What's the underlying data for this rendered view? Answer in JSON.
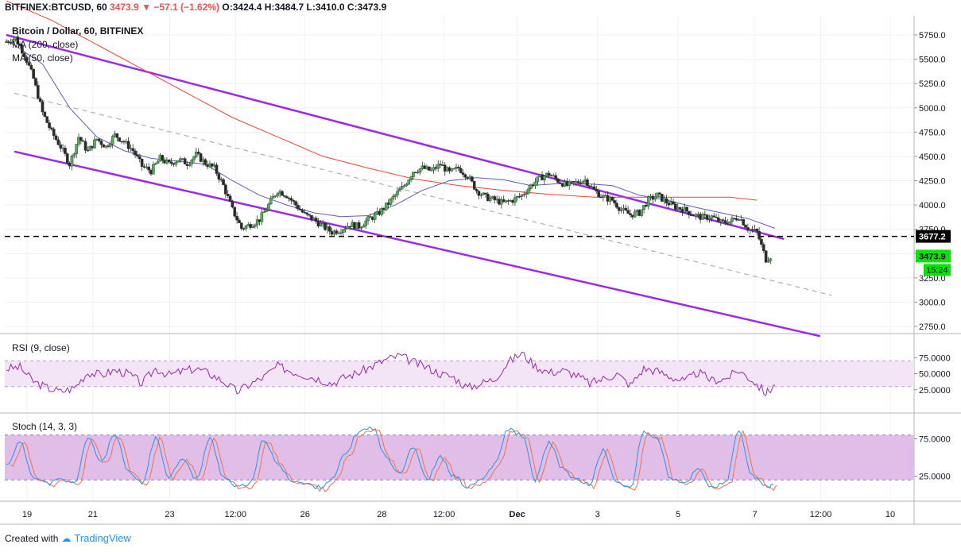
{
  "header": {
    "symbol": "BITFINEX:BTCUSD, 60",
    "last": "3473.9",
    "change": "−57.1 (−1.62%)",
    "ohlc": {
      "o": "O:3424.4",
      "h": "H:3484.7",
      "l": "L:3410.0",
      "c": "C:3473.9"
    }
  },
  "legend": {
    "main": "Bitcoin / Dollar, 60, BITFINEX",
    "ma200": "MA (200, close)",
    "ma50": "MA (50, close)",
    "rsi": "RSI (9, close)",
    "stoch": "Stoch (14, 3, 3)"
  },
  "footer": {
    "created_with": "Created with",
    "brand": "TradingView"
  },
  "price_labels": {
    "resistance": "3677.2",
    "last": "3473.9",
    "countdown": "15:24"
  },
  "colors": {
    "up": "#26a69a",
    "down": "#ef5350",
    "candle_up": "#4caf50",
    "candle_down": "#2a2a2a",
    "channel": "#9c27f0",
    "ma200": "#f44336",
    "ma50": "#5b5fb5",
    "rsi_line": "#9c27b0",
    "rsi_band": "#f3e5f5",
    "stoch_band": "#e1bee7",
    "stoch_k": "#2196f3",
    "stoch_d": "#ff7043",
    "last_price": "#00e600"
  },
  "chart_data": [
    {
      "type": "candlestick",
      "title": "Bitcoin / Dollar, 60, BITFINEX",
      "ylim": [
        2600,
        5900
      ],
      "y_ticks": [
        "5750.0",
        "5500.0",
        "5250.0",
        "5000.0",
        "4750.0",
        "4500.0",
        "4250.0",
        "4000.0",
        "3750.0",
        "3500.0",
        "3250.0",
        "3000.0",
        "2750.0"
      ],
      "x_ticks": [
        "19",
        "21",
        "23",
        "12:00",
        "26",
        "28",
        "12:00",
        "Dec",
        "3",
        "5",
        "7",
        "12:00",
        "10"
      ],
      "close_path": [
        [
          0,
          5680
        ],
        [
          2,
          5720
        ],
        [
          4,
          5550
        ],
        [
          6,
          5300
        ],
        [
          8,
          4950
        ],
        [
          10,
          4750
        ],
        [
          12,
          4600
        ],
        [
          14,
          4420
        ],
        [
          16,
          4700
        ],
        [
          18,
          4550
        ],
        [
          20,
          4680
        ],
        [
          22,
          4600
        ],
        [
          24,
          4720
        ],
        [
          26,
          4650
        ],
        [
          28,
          4560
        ],
        [
          30,
          4400
        ],
        [
          32,
          4350
        ],
        [
          34,
          4480
        ],
        [
          36,
          4420
        ],
        [
          38,
          4470
        ],
        [
          40,
          4430
        ],
        [
          42,
          4520
        ],
        [
          44,
          4430
        ],
        [
          46,
          4380
        ],
        [
          48,
          4200
        ],
        [
          50,
          3950
        ],
        [
          52,
          3760
        ],
        [
          54,
          3800
        ],
        [
          56,
          3850
        ],
        [
          58,
          4000
        ],
        [
          60,
          4150
        ],
        [
          62,
          4100
        ],
        [
          64,
          4000
        ],
        [
          66,
          3900
        ],
        [
          68,
          3850
        ],
        [
          70,
          3780
        ],
        [
          72,
          3720
        ],
        [
          74,
          3750
        ],
        [
          76,
          3800
        ],
        [
          78,
          3780
        ],
        [
          80,
          3850
        ],
        [
          82,
          3900
        ],
        [
          84,
          3990
        ],
        [
          86,
          4100
        ],
        [
          88,
          4200
        ],
        [
          90,
          4350
        ],
        [
          92,
          4380
        ],
        [
          94,
          4350
        ],
        [
          96,
          4420
        ],
        [
          98,
          4330
        ],
        [
          100,
          4380
        ],
        [
          102,
          4300
        ],
        [
          104,
          4150
        ],
        [
          106,
          4080
        ],
        [
          108,
          4050
        ],
        [
          110,
          4020
        ],
        [
          112,
          4050
        ],
        [
          114,
          4100
        ],
        [
          116,
          4200
        ],
        [
          118,
          4280
        ],
        [
          120,
          4320
        ],
        [
          122,
          4250
        ],
        [
          124,
          4200
        ],
        [
          126,
          4230
        ],
        [
          128,
          4260
        ],
        [
          130,
          4150
        ],
        [
          132,
          4080
        ],
        [
          134,
          4050
        ],
        [
          136,
          3950
        ],
        [
          138,
          3900
        ],
        [
          140,
          3920
        ],
        [
          142,
          4050
        ],
        [
          144,
          4100
        ],
        [
          146,
          4030
        ],
        [
          148,
          3980
        ],
        [
          150,
          3950
        ],
        [
          152,
          3900
        ],
        [
          154,
          3870
        ],
        [
          156,
          3880
        ],
        [
          158,
          3820
        ],
        [
          160,
          3830
        ],
        [
          162,
          3880
        ],
        [
          164,
          3760
        ],
        [
          166,
          3720
        ],
        [
          168,
          3440
        ],
        [
          169,
          3473.9
        ]
      ],
      "ma200": [
        [
          0,
          6100
        ],
        [
          10,
          5900
        ],
        [
          20,
          5650
        ],
        [
          30,
          5400
        ],
        [
          40,
          5150
        ],
        [
          50,
          4900
        ],
        [
          60,
          4700
        ],
        [
          70,
          4500
        ],
        [
          80,
          4380
        ],
        [
          90,
          4270
        ],
        [
          100,
          4200
        ],
        [
          110,
          4150
        ],
        [
          120,
          4110
        ],
        [
          130,
          4080
        ],
        [
          140,
          4080
        ],
        [
          150,
          4080
        ],
        [
          160,
          4080
        ],
        [
          166,
          4050
        ]
      ],
      "ma50": [
        [
          0,
          5700
        ],
        [
          8,
          5450
        ],
        [
          14,
          5000
        ],
        [
          20,
          4700
        ],
        [
          26,
          4560
        ],
        [
          32,
          4480
        ],
        [
          38,
          4450
        ],
        [
          44,
          4420
        ],
        [
          50,
          4250
        ],
        [
          56,
          4100
        ],
        [
          62,
          4000
        ],
        [
          68,
          3920
        ],
        [
          74,
          3880
        ],
        [
          80,
          3890
        ],
        [
          86,
          4000
        ],
        [
          92,
          4150
        ],
        [
          98,
          4250
        ],
        [
          104,
          4280
        ],
        [
          110,
          4260
        ],
        [
          116,
          4200
        ],
        [
          122,
          4220
        ],
        [
          128,
          4220
        ],
        [
          134,
          4200
        ],
        [
          140,
          4100
        ],
        [
          146,
          4050
        ],
        [
          152,
          3980
        ],
        [
          158,
          3920
        ],
        [
          164,
          3860
        ],
        [
          170,
          3760
        ]
      ],
      "channel_upper": [
        [
          0,
          5750
        ],
        [
          172,
          3650
        ]
      ],
      "channel_lower": [
        [
          0,
          4550
        ],
        [
          158,
          2650
        ]
      ],
      "midline": [
        [
          0,
          5150
        ],
        [
          172,
          3070
        ]
      ],
      "resistance": 3677.2,
      "last": 3473.9
    },
    {
      "type": "line",
      "title": "RSI (9, close)",
      "ylim": [
        0,
        100
      ],
      "y_ticks": [
        "75.0000",
        "50.0000",
        "25.0000"
      ],
      "band": [
        30,
        70
      ],
      "values": [
        [
          0,
          58
        ],
        [
          3,
          60
        ],
        [
          6,
          38
        ],
        [
          9,
          28
        ],
        [
          12,
          22
        ],
        [
          15,
          28
        ],
        [
          18,
          52
        ],
        [
          21,
          48
        ],
        [
          24,
          55
        ],
        [
          27,
          50
        ],
        [
          30,
          35
        ],
        [
          33,
          58
        ],
        [
          36,
          48
        ],
        [
          39,
          54
        ],
        [
          42,
          58
        ],
        [
          45,
          50
        ],
        [
          48,
          38
        ],
        [
          51,
          22
        ],
        [
          54,
          34
        ],
        [
          57,
          45
        ],
        [
          60,
          62
        ],
        [
          63,
          54
        ],
        [
          66,
          48
        ],
        [
          69,
          42
        ],
        [
          72,
          35
        ],
        [
          75,
          45
        ],
        [
          78,
          52
        ],
        [
          81,
          62
        ],
        [
          84,
          72
        ],
        [
          87,
          78
        ],
        [
          90,
          68
        ],
        [
          93,
          60
        ],
        [
          96,
          50
        ],
        [
          99,
          44
        ],
        [
          102,
          28
        ],
        [
          105,
          35
        ],
        [
          108,
          42
        ],
        [
          111,
          68
        ],
        [
          114,
          82
        ],
        [
          117,
          62
        ],
        [
          120,
          52
        ],
        [
          123,
          55
        ],
        [
          126,
          48
        ],
        [
          129,
          35
        ],
        [
          132,
          42
        ],
        [
          135,
          50
        ],
        [
          138,
          32
        ],
        [
          141,
          58
        ],
        [
          144,
          54
        ],
        [
          147,
          45
        ],
        [
          150,
          38
        ],
        [
          153,
          52
        ],
        [
          156,
          40
        ],
        [
          159,
          42
        ],
        [
          162,
          55
        ],
        [
          165,
          40
        ],
        [
          168,
          20
        ],
        [
          170,
          32
        ]
      ]
    },
    {
      "type": "line",
      "title": "Stoch (14, 3, 3)",
      "ylim": [
        0,
        100
      ],
      "y_ticks": [
        "75.0000",
        "25.0000"
      ],
      "band": [
        20,
        80
      ],
      "k": [
        [
          0,
          40
        ],
        [
          3,
          70
        ],
        [
          6,
          25
        ],
        [
          9,
          15
        ],
        [
          12,
          20
        ],
        [
          15,
          15
        ],
        [
          18,
          75
        ],
        [
          21,
          45
        ],
        [
          24,
          80
        ],
        [
          27,
          30
        ],
        [
          30,
          15
        ],
        [
          33,
          75
        ],
        [
          36,
          25
        ],
        [
          39,
          50
        ],
        [
          42,
          20
        ],
        [
          45,
          75
        ],
        [
          48,
          25
        ],
        [
          51,
          10
        ],
        [
          54,
          15
        ],
        [
          57,
          75
        ],
        [
          60,
          40
        ],
        [
          63,
          20
        ],
        [
          66,
          15
        ],
        [
          69,
          10
        ],
        [
          72,
          20
        ],
        [
          75,
          55
        ],
        [
          78,
          85
        ],
        [
          81,
          90
        ],
        [
          84,
          50
        ],
        [
          87,
          30
        ],
        [
          90,
          65
        ],
        [
          93,
          20
        ],
        [
          96,
          50
        ],
        [
          99,
          25
        ],
        [
          102,
          10
        ],
        [
          105,
          20
        ],
        [
          108,
          40
        ],
        [
          111,
          88
        ],
        [
          114,
          80
        ],
        [
          117,
          20
        ],
        [
          120,
          70
        ],
        [
          123,
          35
        ],
        [
          126,
          20
        ],
        [
          129,
          15
        ],
        [
          132,
          60
        ],
        [
          135,
          15
        ],
        [
          138,
          10
        ],
        [
          141,
          85
        ],
        [
          144,
          75
        ],
        [
          147,
          20
        ],
        [
          150,
          15
        ],
        [
          153,
          35
        ],
        [
          156,
          10
        ],
        [
          159,
          15
        ],
        [
          162,
          85
        ],
        [
          165,
          25
        ],
        [
          168,
          10
        ],
        [
          170,
          15
        ]
      ]
    }
  ]
}
